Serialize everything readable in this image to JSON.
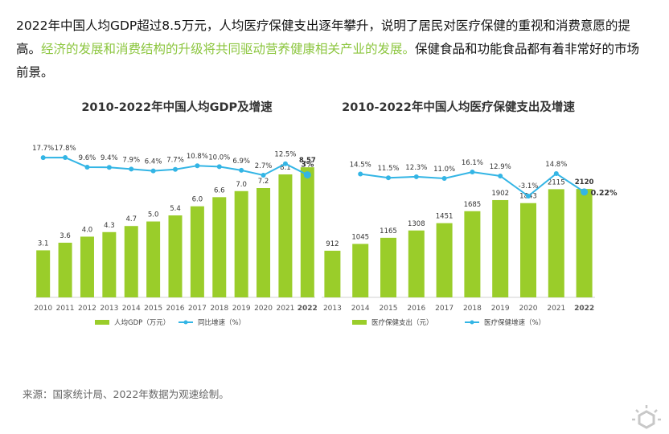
{
  "intro": {
    "part1": "2022年中国人均GDP超过8.5万元，人均医疗保健支出逐年攀升，说明了居民对医疗保健的重视和消费意愿的提高。",
    "highlight": "经济的发展和消费结构的升级将共同驱动营养健康相关产业的发展。",
    "part2": "保健食品和功能食品都有着非常好的市场前景。"
  },
  "colors": {
    "bar": "#9acd2a",
    "line": "#33b5e5",
    "highlight": "#8cc63f"
  },
  "chart_data": [
    {
      "type": "bar+line",
      "title": "2010-2022年中国人均GDP及增速",
      "categories": [
        "2010",
        "2011",
        "2012",
        "2013",
        "2014",
        "2015",
        "2016",
        "2017",
        "2018",
        "2019",
        "2020",
        "2021",
        "2022"
      ],
      "series": [
        {
          "name": "人均GDP（万元）",
          "type": "bar",
          "values": [
            3.1,
            3.6,
            4.0,
            4.3,
            4.7,
            5.0,
            5.4,
            6.0,
            6.6,
            7.0,
            7.2,
            8.1,
            8.57
          ],
          "labels": [
            "3.1",
            "3.6",
            "4.0",
            "4.3",
            "4.7",
            "5.0",
            "5.4",
            "6.0",
            "6.6",
            "7.0",
            "7.2",
            "8.1",
            "8.57"
          ]
        },
        {
          "name": "同比增速（%）",
          "type": "line",
          "values": [
            17.7,
            17.8,
            9.6,
            9.4,
            7.9,
            6.4,
            7.7,
            10.8,
            10.0,
            6.9,
            2.7,
            12.5,
            3
          ],
          "labels": [
            "17.7%",
            "17.8%",
            "9.6%",
            "9.4%",
            "7.9%",
            "6.4%",
            "7.7%",
            "10.8%",
            "10.0%",
            "6.9%",
            "2.7%",
            "12.5%",
            "3%"
          ]
        }
      ],
      "legend": [
        "人均GDP（万元）",
        "同比增速（%）"
      ]
    },
    {
      "type": "bar+line",
      "title": "2010-2022年中国人均医疗保健支出及增速",
      "categories": [
        "2013",
        "2014",
        "2015",
        "2016",
        "2017",
        "2018",
        "2019",
        "2020",
        "2021",
        "2022"
      ],
      "series": [
        {
          "name": "医疗保健支出（元）",
          "type": "bar",
          "values": [
            912,
            1045,
            1165,
            1308,
            1451,
            1685,
            1902,
            1843,
            2115,
            2120
          ],
          "labels": [
            "912",
            "1045",
            "1165",
            "1308",
            "1451",
            "1685",
            "1902",
            "1843",
            "2115",
            "2120"
          ]
        },
        {
          "name": "医疗保健增速（%）",
          "type": "line",
          "values": [
            null,
            14.5,
            11.5,
            12.3,
            11.0,
            16.1,
            12.9,
            -3.1,
            14.8,
            0.22
          ],
          "labels": [
            "",
            "14.5%",
            "11.5%",
            "12.3%",
            "11.0%",
            "16.1%",
            "12.9%",
            "-3.1%",
            "14.8%",
            "0.22%"
          ]
        }
      ],
      "legend": [
        "医疗保健支出（元）",
        "医疗保健增速（%）"
      ]
    }
  ],
  "source": "来源：国家统计局、2022年数据为观速绘制。"
}
